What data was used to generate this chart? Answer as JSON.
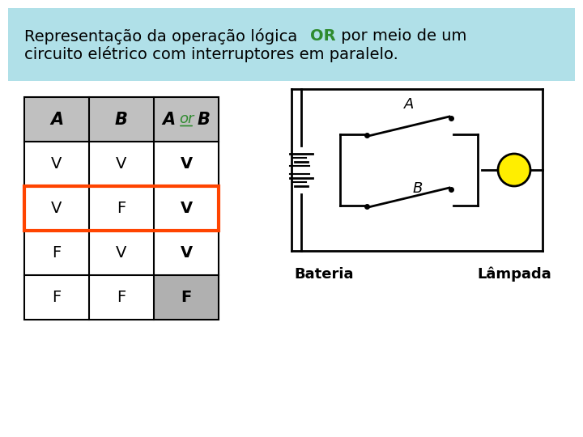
{
  "title_text1": "Representação da operação lógica ",
  "title_or": "OR",
  "title_text2": " por meio de um\ncircuito elétrico com interruptores em paralelo.",
  "title_bg": "#b0e0e8",
  "or_color": "#2e8b2e",
  "table_headers": [
    "A",
    "B",
    "A or B"
  ],
  "table_rows": [
    [
      "V",
      "V",
      "V"
    ],
    [
      "V",
      "F",
      "V"
    ],
    [
      "F",
      "V",
      "V"
    ],
    [
      "F",
      "F",
      "F"
    ]
  ],
  "header_bg": "#c0c0c0",
  "row2_highlight": "#ff4400",
  "last_cell_bg": "#b0b0b0",
  "bateria_label": "Bateria",
  "lampada_label": "Lâmpada",
  "lamp_color": "#ffee00",
  "circuit_line_color": "#000000",
  "background": "#ffffff"
}
